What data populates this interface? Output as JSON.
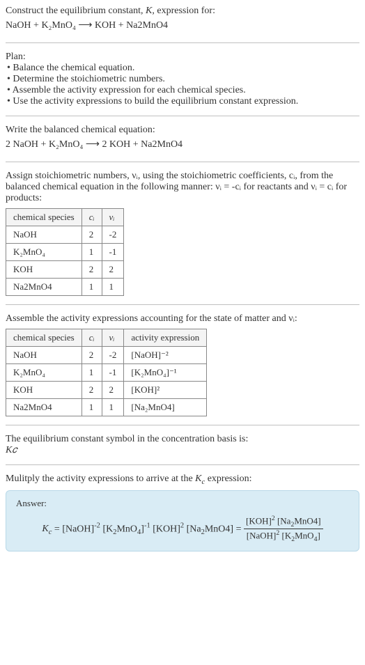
{
  "intro": {
    "line1": "Construct the equilibrium constant, K, expression for:",
    "equation": "NaOH + K₂MnO₄ ⟶ KOH + Na2MnO4"
  },
  "plan": {
    "heading": "Plan:",
    "bullets": [
      "• Balance the chemical equation.",
      "• Determine the stoichiometric numbers.",
      "• Assemble the activity expression for each chemical species.",
      "• Use the activity expressions to build the equilibrium constant expression."
    ]
  },
  "balanced": {
    "heading": "Write the balanced chemical equation:",
    "equation": "2 NaOH + K₂MnO₄ ⟶ 2 KOH + Na2MnO4"
  },
  "stoich": {
    "text": "Assign stoichiometric numbers, νᵢ, using the stoichiometric coefficients, cᵢ, from the balanced chemical equation in the following manner: νᵢ = -cᵢ for reactants and νᵢ = cᵢ for products:",
    "headers": [
      "chemical species",
      "cᵢ",
      "νᵢ"
    ],
    "rows": [
      [
        "NaOH",
        "2",
        "-2"
      ],
      [
        "K₂MnO₄",
        "1",
        "-1"
      ],
      [
        "KOH",
        "2",
        "2"
      ],
      [
        "Na2MnO4",
        "1",
        "1"
      ]
    ]
  },
  "activity": {
    "heading": "Assemble the activity expressions accounting for the state of matter and νᵢ:",
    "headers": [
      "chemical species",
      "cᵢ",
      "νᵢ",
      "activity expression"
    ],
    "rows": [
      [
        "NaOH",
        "2",
        "-2",
        "[NaOH]⁻²"
      ],
      [
        "K₂MnO₄",
        "1",
        "-1",
        "[K₂MnO₄]⁻¹"
      ],
      [
        "KOH",
        "2",
        "2",
        "[KOH]²"
      ],
      [
        "Na2MnO4",
        "1",
        "1",
        "[Na₂MnO4]"
      ]
    ]
  },
  "kc_symbol": {
    "heading": "The equilibrium constant symbol in the concentration basis is:",
    "symbol": "K𝑐"
  },
  "multiply": {
    "heading": "Mulitply the activity expressions to arrive at the K𝑐 expression:"
  },
  "answer": {
    "label": "Answer:",
    "lhs": "K𝑐 = [NaOH]⁻² [K₂MnO₄]⁻¹ [KOH]² [Na₂MnO4] =",
    "frac_num": "[KOH]² [Na₂MnO4]",
    "frac_den": "[NaOH]² [K₂MnO₄]"
  },
  "style": {
    "border_color": "#c0c0c0",
    "answer_bg": "#d9ecf5",
    "answer_border": "#b8d8e8",
    "font_size": 14,
    "table_border": "#888"
  }
}
